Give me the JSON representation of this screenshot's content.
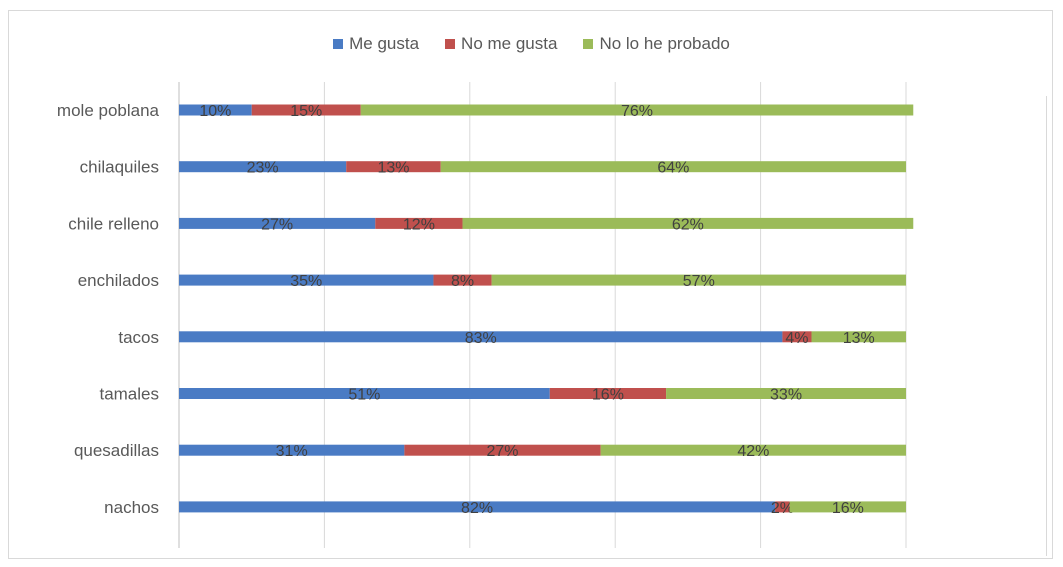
{
  "colors": {
    "me_gusta": "#4a7bc4",
    "no_me_gusta": "#c0504d",
    "no_probado": "#9bbb59"
  },
  "chart_data": {
    "type": "bar",
    "orientation": "horizontal",
    "stacked": true,
    "categories": [
      "mole poblana",
      "chilaquiles",
      "chile relleno",
      "enchilados",
      "tacos",
      "tamales",
      "quesadillas",
      "nachos"
    ],
    "series": [
      {
        "name": "Me gusta",
        "values": [
          10,
          23,
          27,
          35,
          83,
          51,
          31,
          82
        ],
        "labels": [
          "10%",
          "23%",
          "27%",
          "35%",
          "83%",
          "51%",
          "31%",
          "82%"
        ]
      },
      {
        "name": "No me gusta",
        "values": [
          15,
          13,
          12,
          8,
          4,
          16,
          27,
          2
        ],
        "labels": [
          "15%",
          "13%",
          "12%",
          "8%",
          "4%",
          "16%",
          "27%",
          "2%"
        ]
      },
      {
        "name": "No lo he probado",
        "values": [
          76,
          64,
          62,
          57,
          13,
          33,
          42,
          16
        ],
        "labels": [
          "76%",
          "64%",
          "62%",
          "57%",
          "13%",
          "33%",
          "42%",
          "16%"
        ]
      }
    ],
    "xlim": [
      0,
      100
    ],
    "grid": true,
    "legend_position": "top"
  }
}
